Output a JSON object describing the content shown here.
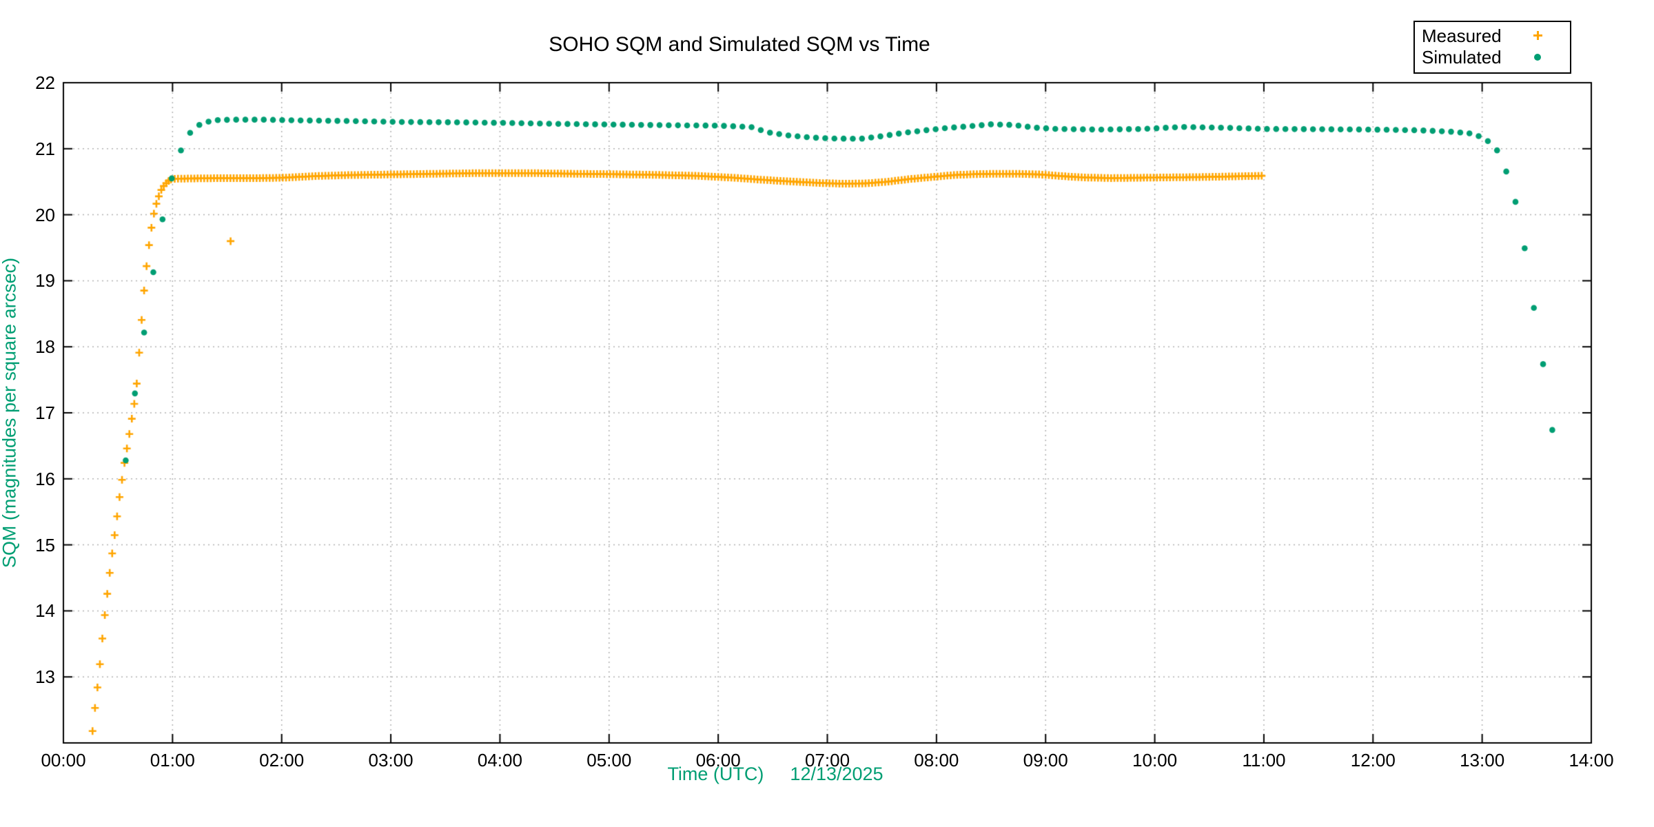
{
  "chart_data": {
    "type": "scatter",
    "title": "SOHO SQM and Simulated SQM vs Time",
    "xlabel": "Time (UTC)",
    "xlabel_date": "12/13/2025",
    "ylabel": "SQM (magnitudes per square arcsec)",
    "x_range_hours": [
      0,
      14
    ],
    "y_range": [
      12,
      22
    ],
    "x_tick_hours": [
      0,
      1,
      2,
      3,
      4,
      5,
      6,
      7,
      8,
      9,
      10,
      11,
      12,
      13,
      14
    ],
    "x_tick_labels": [
      "00:00",
      "01:00",
      "02:00",
      "03:00",
      "04:00",
      "05:00",
      "06:00",
      "07:00",
      "08:00",
      "09:00",
      "10:00",
      "11:00",
      "12:00",
      "13:00",
      "14:00"
    ],
    "y_ticks": [
      13,
      14,
      15,
      16,
      17,
      18,
      19,
      20,
      21,
      22
    ],
    "grid": true,
    "legend_position": "top-right-outside",
    "colors": {
      "measured": "#ffa500",
      "simulated": "#009e73",
      "grid": "#b0b0b0",
      "axis": "#000000",
      "axis_label": "#009e73"
    },
    "legend": {
      "entries": [
        {
          "label": "Measured",
          "marker": "plus",
          "color": "#ffa500"
        },
        {
          "label": "Simulated",
          "marker": "dot",
          "color": "#009e73"
        }
      ]
    },
    "series": [
      {
        "name": "Measured",
        "marker": "plus",
        "color": "#ffa500",
        "segments": [
          {
            "t_start": 0.267,
            "t_end": 0.998,
            "step_minutes": 1.35,
            "anchors": [
              [
                0.267,
                12.18
              ],
              [
                0.283,
                12.45
              ],
              [
                0.3,
                12.66
              ],
              [
                0.316,
                12.9
              ],
              [
                0.332,
                13.15
              ],
              [
                0.348,
                13.42
              ],
              [
                0.363,
                13.69
              ],
              [
                0.379,
                13.93
              ],
              [
                0.396,
                14.17
              ],
              [
                0.413,
                14.42
              ],
              [
                0.43,
                14.65
              ],
              [
                0.447,
                14.87
              ],
              [
                0.464,
                15.08
              ],
              [
                0.481,
                15.29
              ],
              [
                0.498,
                15.51
              ],
              [
                0.515,
                15.73
              ],
              [
                0.531,
                15.91
              ],
              [
                0.548,
                16.12
              ],
              [
                0.565,
                16.3
              ],
              [
                0.582,
                16.46
              ],
              [
                0.599,
                16.62
              ],
              [
                0.615,
                16.79
              ],
              [
                0.632,
                16.96
              ],
              [
                0.648,
                17.12
              ],
              [
                0.661,
                17.25
              ],
              [
                0.673,
                17.46
              ],
              [
                0.688,
                17.78
              ],
              [
                0.699,
                18.0
              ],
              [
                0.712,
                18.3
              ],
              [
                0.726,
                18.6
              ],
              [
                0.741,
                18.88
              ],
              [
                0.756,
                19.13
              ],
              [
                0.771,
                19.36
              ],
              [
                0.786,
                19.56
              ],
              [
                0.801,
                19.74
              ],
              [
                0.816,
                19.9
              ],
              [
                0.831,
                20.03
              ],
              [
                0.847,
                20.14
              ],
              [
                0.864,
                20.23
              ],
              [
                0.881,
                20.31
              ],
              [
                0.898,
                20.38
              ],
              [
                0.917,
                20.43
              ],
              [
                0.936,
                20.47
              ],
              [
                0.956,
                20.5
              ],
              [
                0.977,
                20.53
              ],
              [
                0.998,
                20.54
              ]
            ]
          },
          {
            "t_start": 1.02,
            "t_end": 10.99,
            "step_minutes": 1.8,
            "anchors": [
              [
                1.02,
                20.545
              ],
              [
                1.2,
                20.55
              ],
              [
                1.5,
                20.555
              ],
              [
                1.8,
                20.555
              ],
              [
                2.0,
                20.56
              ],
              [
                2.3,
                20.585
              ],
              [
                2.6,
                20.6
              ],
              [
                3.0,
                20.61
              ],
              [
                3.4,
                20.62
              ],
              [
                3.8,
                20.63
              ],
              [
                4.3,
                20.63
              ],
              [
                4.7,
                20.62
              ],
              [
                5.0,
                20.615
              ],
              [
                5.4,
                20.605
              ],
              [
                5.8,
                20.59
              ],
              [
                6.1,
                20.565
              ],
              [
                6.4,
                20.53
              ],
              [
                6.7,
                20.5
              ],
              [
                6.95,
                20.48
              ],
              [
                7.15,
                20.47
              ],
              [
                7.35,
                20.475
              ],
              [
                7.55,
                20.5
              ],
              [
                7.75,
                20.54
              ],
              [
                7.95,
                20.57
              ],
              [
                8.15,
                20.6
              ],
              [
                8.35,
                20.615
              ],
              [
                8.55,
                20.62
              ],
              [
                8.75,
                20.62
              ],
              [
                8.95,
                20.61
              ],
              [
                9.15,
                20.585
              ],
              [
                9.35,
                20.565
              ],
              [
                9.6,
                20.555
              ],
              [
                9.85,
                20.56
              ],
              [
                10.1,
                20.565
              ],
              [
                10.4,
                20.57
              ],
              [
                10.7,
                20.58
              ],
              [
                10.99,
                20.59
              ]
            ]
          }
        ],
        "outlier_points": [
          [
            1.532,
            19.6
          ]
        ]
      },
      {
        "name": "Simulated",
        "marker": "dot",
        "color": "#009e73",
        "segments": [
          {
            "t_start": 0.571,
            "t_end": 13.648,
            "step_minutes": 5.06,
            "anchors": [
              [
                0.571,
                16.28
              ],
              [
                0.655,
                17.29
              ],
              [
                0.74,
                18.22
              ],
              [
                0.824,
                19.13
              ],
              [
                0.907,
                19.92
              ],
              [
                0.994,
                20.56
              ],
              [
                1.08,
                20.99
              ],
              [
                1.161,
                21.24
              ],
              [
                1.245,
                21.36
              ],
              [
                1.33,
                21.41
              ],
              [
                1.42,
                21.435
              ],
              [
                1.55,
                21.44
              ],
              [
                1.85,
                21.44
              ],
              [
                2.1,
                21.43
              ],
              [
                2.6,
                21.42
              ],
              [
                3.1,
                21.405
              ],
              [
                3.6,
                21.4
              ],
              [
                4.1,
                21.39
              ],
              [
                4.6,
                21.375
              ],
              [
                5.1,
                21.365
              ],
              [
                5.6,
                21.355
              ],
              [
                6.0,
                21.35
              ],
              [
                6.3,
                21.33
              ],
              [
                6.45,
                21.25
              ],
              [
                6.65,
                21.2
              ],
              [
                6.85,
                21.17
              ],
              [
                7.05,
                21.155
              ],
              [
                7.3,
                21.15
              ],
              [
                7.5,
                21.19
              ],
              [
                7.7,
                21.24
              ],
              [
                7.9,
                21.28
              ],
              [
                8.1,
                21.315
              ],
              [
                8.3,
                21.34
              ],
              [
                8.5,
                21.37
              ],
              [
                8.7,
                21.36
              ],
              [
                8.9,
                21.32
              ],
              [
                9.1,
                21.3
              ],
              [
                9.5,
                21.29
              ],
              [
                9.9,
                21.3
              ],
              [
                10.25,
                21.33
              ],
              [
                10.6,
                21.32
              ],
              [
                11.0,
                21.3
              ],
              [
                11.5,
                21.295
              ],
              [
                12.0,
                21.29
              ],
              [
                12.4,
                21.28
              ],
              [
                12.7,
                21.26
              ],
              [
                12.9,
                21.23
              ],
              [
                12.97,
                21.19
              ],
              [
                13.05,
                21.12
              ],
              [
                13.14,
                20.97
              ],
              [
                13.22,
                20.66
              ],
              [
                13.31,
                20.17
              ],
              [
                13.39,
                19.49
              ],
              [
                13.47,
                18.63
              ],
              [
                13.56,
                17.72
              ],
              [
                13.64,
                16.74
              ]
            ]
          }
        ],
        "outlier_points": []
      }
    ]
  }
}
